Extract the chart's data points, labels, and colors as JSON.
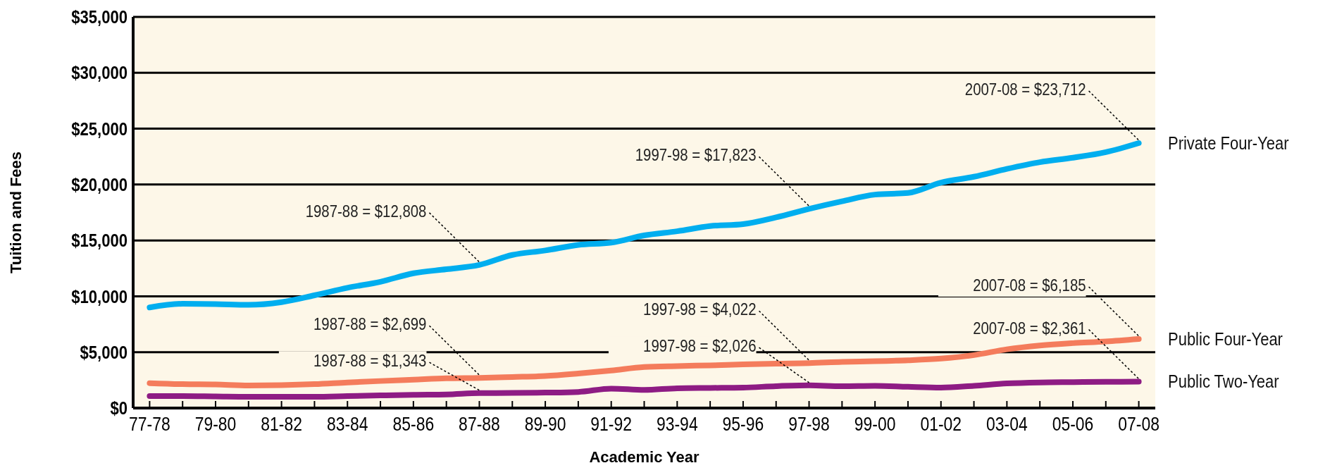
{
  "chart_data": {
    "type": "line",
    "xlabel": "Academic Year",
    "ylabel": "Tuition and Fees",
    "categories": [
      "77-78",
      null,
      "79-80",
      null,
      "81-82",
      null,
      "83-84",
      null,
      "85-86",
      null,
      "87-88",
      null,
      "89-90",
      null,
      "91-92",
      null,
      "93-94",
      null,
      "95-96",
      null,
      "97-98",
      null,
      "99-00",
      null,
      "01-02",
      null,
      "03-04",
      null,
      "05-06",
      null,
      "07-08"
    ],
    "series": [
      {
        "name": "Private Four-Year",
        "color": "#00aeef",
        "values": [
          9000,
          9330,
          9300,
          9240,
          9480,
          10090,
          10760,
          11300,
          12060,
          12420,
          12808,
          13700,
          14100,
          14600,
          14800,
          15450,
          15820,
          16280,
          16460,
          17070,
          17823,
          18500,
          19100,
          19250,
          20170,
          20700,
          21400,
          22000,
          22400,
          22900,
          23712
        ]
      },
      {
        "name": "Public Four-Year",
        "color": "#f47c5c",
        "values": [
          2230,
          2140,
          2110,
          2020,
          2050,
          2140,
          2290,
          2420,
          2540,
          2660,
          2699,
          2780,
          2870,
          3090,
          3360,
          3670,
          3760,
          3820,
          3910,
          3980,
          4022,
          4130,
          4190,
          4280,
          4430,
          4740,
          5260,
          5600,
          5810,
          5960,
          6185
        ]
      },
      {
        "name": "Public Two-Year",
        "color": "#8e1c84",
        "values": [
          1070,
          1070,
          1040,
          1010,
          1010,
          1010,
          1070,
          1130,
          1190,
          1220,
          1343,
          1350,
          1380,
          1440,
          1740,
          1620,
          1770,
          1800,
          1830,
          1960,
          2026,
          1960,
          1990,
          1900,
          1830,
          1990,
          2200,
          2290,
          2320,
          2350,
          2361
        ]
      }
    ],
    "ylim": [
      0,
      35000
    ],
    "yticks": [
      {
        "value": 0,
        "label": "$0"
      },
      {
        "value": 5000,
        "label": "$5,000"
      },
      {
        "value": 10000,
        "label": "$10,000"
      },
      {
        "value": 15000,
        "label": "$15,000"
      },
      {
        "value": 20000,
        "label": "$20,000"
      },
      {
        "value": 25000,
        "label": "$25,000"
      },
      {
        "value": 30000,
        "label": "$30,000"
      },
      {
        "value": 35000,
        "label": "$35,000"
      }
    ],
    "grid": "y",
    "legend": false,
    "marker": "none",
    "line_style": "solid",
    "annotations": [
      {
        "text": "1987-88 = $12,808",
        "x": "87-88",
        "y": 12808
      },
      {
        "text": "1987-88 = $2,699",
        "x": "87-88",
        "y": 2699
      },
      {
        "text": "1987-88 = $1,343",
        "x": "87-88",
        "y": 1343
      },
      {
        "text": "1997-98 = $17,823",
        "x": "97-98",
        "y": 17823
      },
      {
        "text": "1997-98 = $4,022",
        "x": "97-98",
        "y": 4022
      },
      {
        "text": "1997-98 = $2,026",
        "x": "97-98",
        "y": 2026
      },
      {
        "text": "2007-08 = $23,712",
        "x": "07-08",
        "y": 23712
      },
      {
        "text": "2007-08 = $6,185",
        "x": "07-08",
        "y": 6185
      },
      {
        "text": "2007-08 = $2,361",
        "x": "07-08",
        "y": 2361
      }
    ]
  }
}
